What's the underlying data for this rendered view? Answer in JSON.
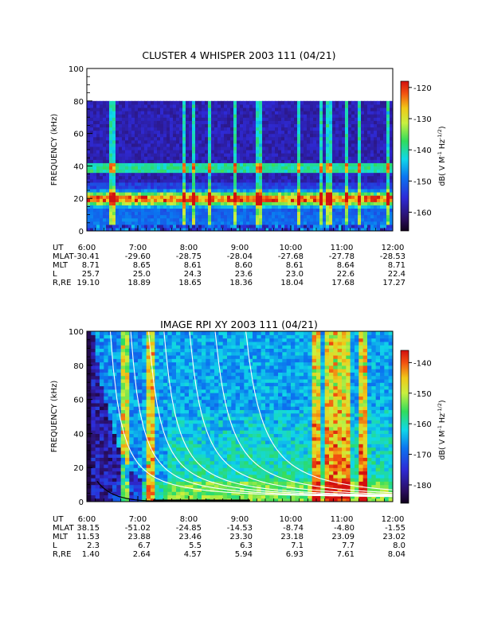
{
  "chart_data": [
    {
      "type": "heatmap",
      "title": "CLUSTER 4 WHISPER 2003 111 (04/21)",
      "ylabel": "FREQUENCY (kHz)",
      "ylim": [
        0,
        100
      ],
      "yticks": [
        "0",
        "20",
        "40",
        "60",
        "80",
        "100"
      ],
      "xlim": [
        "6:00",
        "12:00"
      ],
      "data_frequency_max_khz": 80,
      "colorbar": {
        "label_parts": [
          "dB( V M",
          "-1",
          " Hz",
          "-1/2",
          ")"
        ],
        "range": [
          -166,
          -118
        ],
        "ticks": [
          "-120",
          "-130",
          "-140",
          "-150",
          "-160"
        ]
      },
      "features": {
        "dominant_band_khz": [
          17,
          23
        ],
        "narrow_line_khz": 39,
        "bright_vertical_streak_times": [
          "6:30",
          "7:55",
          "8:05",
          "8:25",
          "8:55",
          "9:20",
          "9:25",
          "10:10",
          "10:35",
          "10:45",
          "11:05",
          "11:20",
          "11:55"
        ]
      },
      "ephemeris": {
        "labels": [
          "UT",
          "MLAT",
          "MLT",
          "L",
          "R,RE"
        ],
        "columns": [
          [
            "6:00",
            "-30.41",
            "8.71",
            "25.7",
            "19.10"
          ],
          [
            "7:00",
            "-29.60",
            "8.65",
            "25.0",
            "18.89"
          ],
          [
            "8:00",
            "-28.75",
            "8.61",
            "24.3",
            "18.65"
          ],
          [
            "9:00",
            "-28.04",
            "8.60",
            "23.6",
            "18.36"
          ],
          [
            "10:00",
            "-27.68",
            "8.61",
            "23.0",
            "18.04"
          ],
          [
            "11:00",
            "-27.78",
            "8.64",
            "22.6",
            "17.68"
          ],
          [
            "12:00",
            "-28.53",
            "8.71",
            "22.4",
            "17.27"
          ]
        ]
      }
    },
    {
      "type": "heatmap",
      "title": "IMAGE RPI XY 2003 111 (04/21)",
      "ylabel": "FREQUENCY (kHz)",
      "ylim": [
        0,
        100
      ],
      "yticks": [
        "0",
        "20",
        "40",
        "60",
        "80",
        "100"
      ],
      "xlim": [
        "6:00",
        "12:00"
      ],
      "colorbar": {
        "label_parts": [
          "dB( V M",
          "-1",
          " Hz",
          "-1/2",
          ")"
        ],
        "range": [
          -186,
          -136
        ],
        "ticks": [
          "-140",
          "-150",
          "-160",
          "-170",
          "-180"
        ]
      },
      "features": {
        "white_contour_curves": 7,
        "black_contour_curves": 1,
        "bright_vertical_streak_times": [
          "6:45",
          "7:15",
          "10:30",
          "10:45",
          "10:55",
          "11:05",
          "11:25"
        ]
      },
      "ephemeris": {
        "labels": [
          "UT",
          "MLAT",
          "MLT",
          "L",
          "R,RE"
        ],
        "columns": [
          [
            "6:00",
            "38.15",
            "11.53",
            "2.3",
            "1.40"
          ],
          [
            "7:00",
            "-51.02",
            "23.88",
            "6.7",
            "2.64"
          ],
          [
            "8:00",
            "-24.85",
            "23.46",
            "5.5",
            "4.57"
          ],
          [
            "9:00",
            "-14.53",
            "23.30",
            "6.3",
            "5.94"
          ],
          [
            "10:00",
            "-8.74",
            "23.18",
            "7.1",
            "6.93"
          ],
          [
            "11:00",
            "-4.80",
            "23.09",
            "7.7",
            "7.61"
          ],
          [
            "12:00",
            "-1.55",
            "23.02",
            "8.0",
            "8.04"
          ]
        ]
      }
    }
  ]
}
